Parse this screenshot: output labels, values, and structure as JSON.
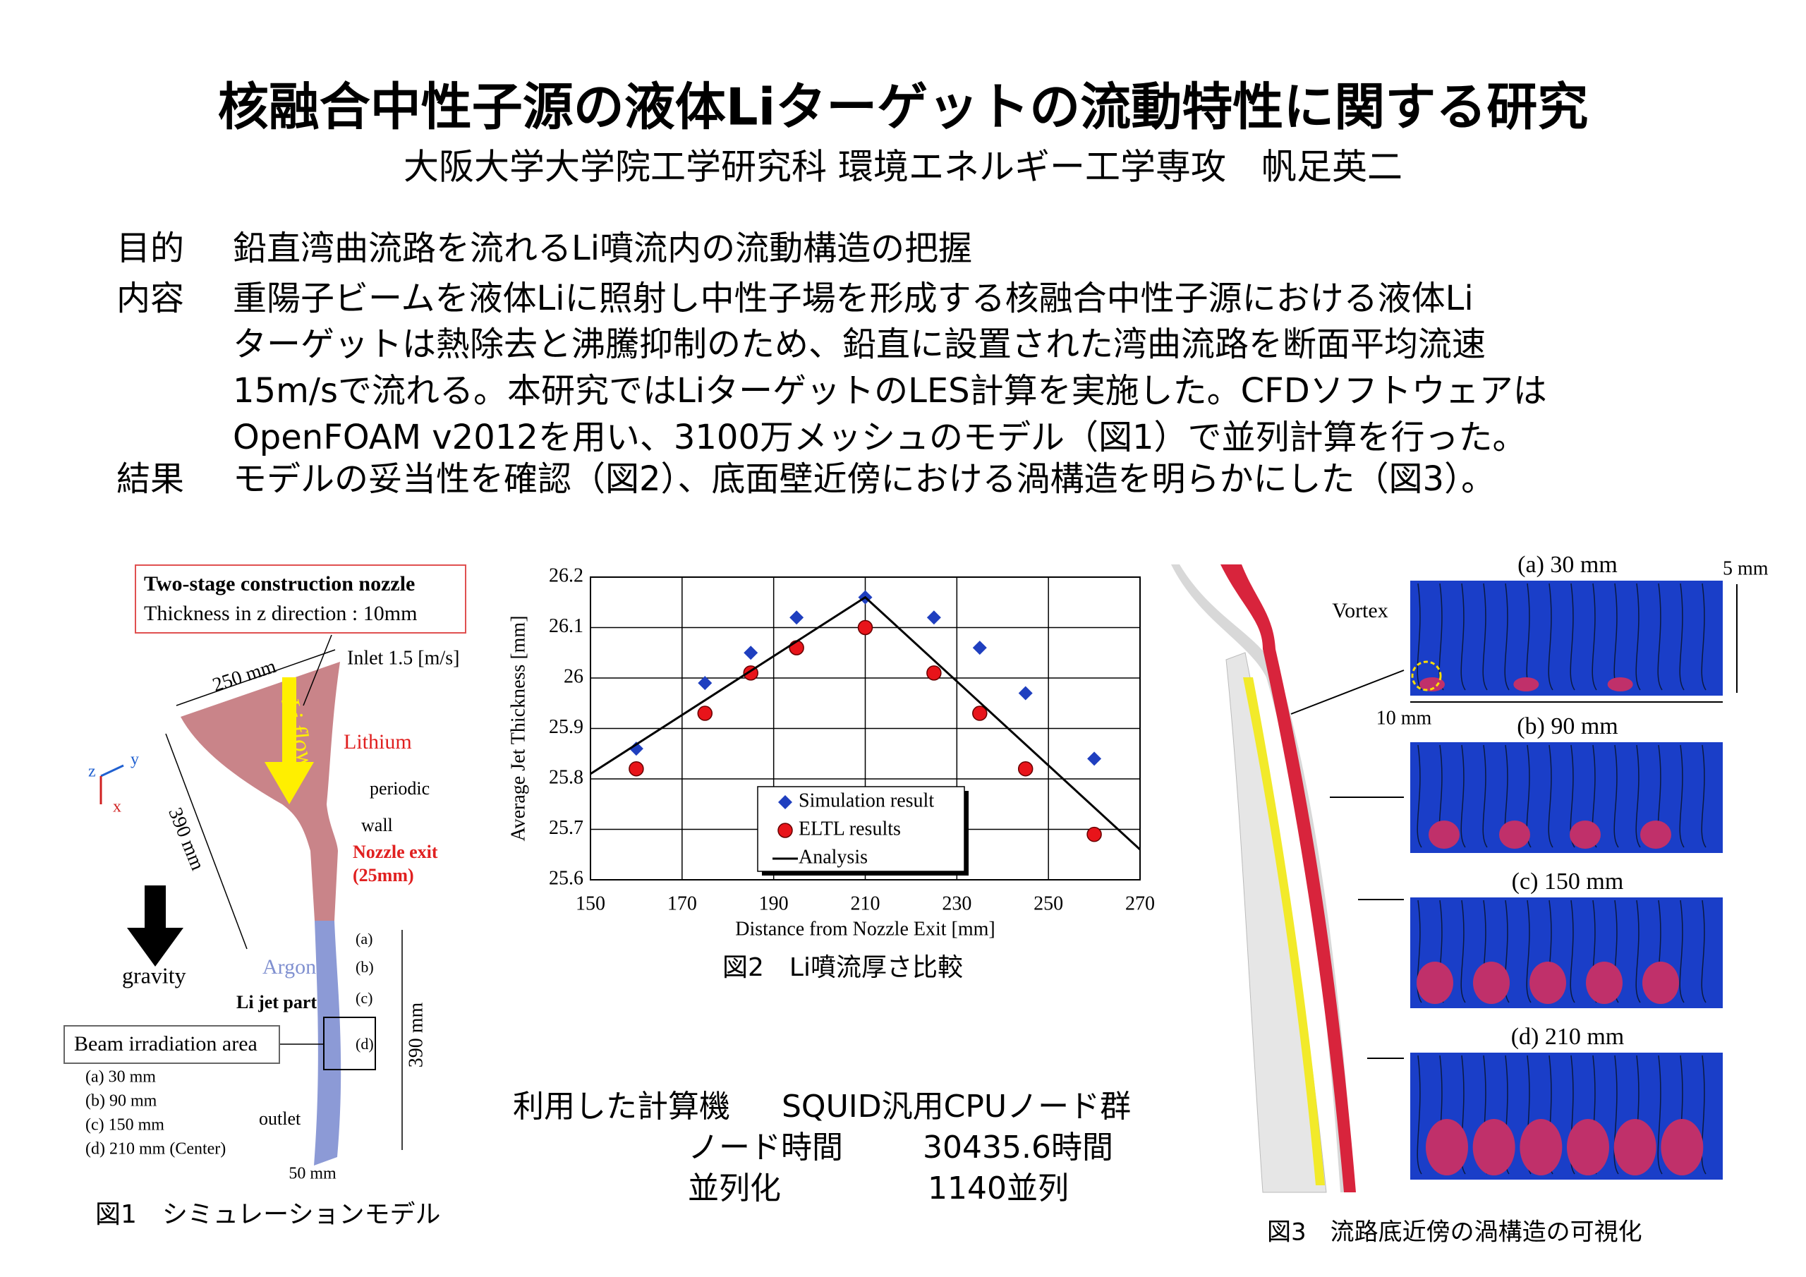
{
  "header": {
    "title": "核融合中性子源の液体Liターゲットの流動特性に関する研究",
    "author": "大阪大学大学院工学研究科 環境エネルギー工学専攻　帆足英二"
  },
  "sections": [
    {
      "label": "目的",
      "lines": [
        "鉛直湾曲流路を流れるLi噴流内の流動構造の把握"
      ]
    },
    {
      "label": "内容",
      "lines": [
        "重陽子ビームを液体Liに照射し中性子場を形成する核融合中性子源における液体Li",
        "ターゲットは熱除去と沸騰抑制のため、鉛直に設置された湾曲流路を断面平均流速",
        "15m/sで流れる。本研究ではLiターゲットのLES計算を実施した。CFDソフトウェアは",
        "OpenFOAM v2012を用い、3100万メッシュのモデル（図1）で並列計算を行った。"
      ]
    },
    {
      "label": "結果",
      "lines": [
        "モデルの妥当性を確認（図2）、底面壁近傍における渦構造を明らかにした（図3）。"
      ]
    }
  ],
  "figure1": {
    "caption": "図1　シミュレーションモデル",
    "box_title": "Two-stage construction nozzle",
    "box_note": "Thickness in z direction : 10mm",
    "inlet": "Inlet 1.5 [m/s]",
    "width_top": "250 mm",
    "flow": "Li flow",
    "lithium": "Lithium",
    "periodic": "periodic",
    "wall": "wall",
    "nozzle_exit": [
      "Nozzle exit",
      "(25mm)"
    ],
    "length_nozzle": "390 mm",
    "axes": [
      "z",
      "y",
      "x"
    ],
    "gravity": "gravity",
    "argon": "Argon",
    "jet_part": "Li jet part",
    "points": [
      "(a)",
      "(b)",
      "(c)",
      "(d)"
    ],
    "beam": "Beam irradiation area",
    "positions": [
      "(a) 30 mm",
      "(b) 90 mm",
      "(c) 150 mm",
      "(d) 210 mm (Center)"
    ],
    "outlet": "outlet",
    "length_jet": "390 mm",
    "width_bottom": "50 mm"
  },
  "chart_data": {
    "type": "scatter",
    "caption": "図2　Li噴流厚さ比較",
    "x_label": "Distance from Nozzle Exit [mm]",
    "y_label": "Average Jet Thickness [mm]",
    "xlim": [
      150,
      270
    ],
    "xticks": [
      150,
      170,
      190,
      210,
      230,
      250,
      270
    ],
    "ylim": [
      25.6,
      26.2
    ],
    "yticks": [
      25.6,
      25.7,
      25.8,
      25.9,
      26,
      26.1,
      26.2
    ],
    "grid": true,
    "series": [
      {
        "name": "Simulation result",
        "color": "#1f3fbf",
        "marker": "diamond",
        "x": [
          160,
          175,
          185,
          195,
          210,
          225,
          235,
          245,
          260
        ],
        "values": [
          25.86,
          25.99,
          26.05,
          26.12,
          26.16,
          26.12,
          26.06,
          25.97,
          25.84
        ]
      },
      {
        "name": "ELTL results",
        "color": "#e8141a",
        "marker": "circle",
        "x": [
          160,
          175,
          185,
          195,
          210,
          225,
          235,
          245,
          260
        ],
        "values": [
          25.82,
          25.93,
          26.01,
          26.06,
          26.1,
          26.01,
          25.93,
          25.82,
          25.69
        ]
      },
      {
        "name": "Analysis",
        "color": "#000000",
        "marker": "line",
        "x": [
          150,
          210,
          270
        ],
        "values": [
          25.81,
          26.16,
          25.66
        ]
      }
    ]
  },
  "computer": {
    "label": "利用した計算機",
    "name": "SQUID汎用CPUノード群",
    "rows": [
      [
        "ノード時間",
        "30435.6時間"
      ],
      [
        "並列化",
        "1140並列"
      ]
    ]
  },
  "figure3": {
    "caption": "図3　流路底近傍の渦構造の可視化",
    "panels": [
      "(a) 30 mm",
      "(b) 90 mm",
      "(c) 150 mm",
      "(d) 210 mm"
    ],
    "height": "5 mm",
    "vortex": "Vortex",
    "width": "10 mm"
  }
}
